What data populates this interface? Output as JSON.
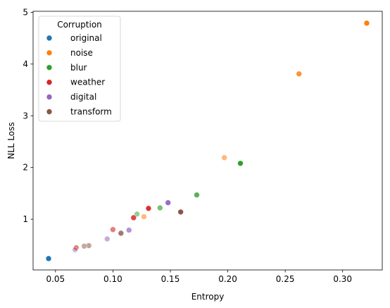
{
  "chart_data": {
    "type": "scatter",
    "title": "",
    "xlabel": "Entropy",
    "ylabel": "NLL Loss",
    "xlim": [
      0.0305,
      0.3345
    ],
    "ylim": [
      0.02,
      5.02
    ],
    "x_ticks": [
      0.05,
      0.1,
      0.15,
      0.2,
      0.25,
      0.3
    ],
    "x_tick_labels": [
      "0.05",
      "0.10",
      "0.15",
      "0.20",
      "0.25",
      "0.30"
    ],
    "y_ticks": [
      1,
      2,
      3,
      4,
      5
    ],
    "y_tick_labels": [
      "1",
      "2",
      "3",
      "4",
      "5"
    ],
    "grid": false,
    "legend": {
      "title": "Corruption",
      "placement": "top-left"
    },
    "series": [
      {
        "name": "original",
        "color": "#1f77b4",
        "points": [
          {
            "x": 0.044,
            "y": 0.24,
            "alpha": 1.0
          }
        ]
      },
      {
        "name": "noise",
        "color": "#ff7f0e",
        "points": [
          {
            "x": 0.321,
            "y": 4.79,
            "alpha": 1.0
          },
          {
            "x": 0.262,
            "y": 3.81,
            "alpha": 0.85
          },
          {
            "x": 0.197,
            "y": 2.19,
            "alpha": 0.55
          },
          {
            "x": 0.127,
            "y": 1.05,
            "alpha": 0.55
          },
          {
            "x": 0.068,
            "y": 0.44,
            "alpha": 0.55
          }
        ]
      },
      {
        "name": "blur",
        "color": "#2ca02c",
        "points": [
          {
            "x": 0.211,
            "y": 2.08,
            "alpha": 1.0
          },
          {
            "x": 0.173,
            "y": 1.47,
            "alpha": 0.8
          },
          {
            "x": 0.141,
            "y": 1.22,
            "alpha": 0.65
          },
          {
            "x": 0.121,
            "y": 1.1,
            "alpha": 0.5
          }
        ]
      },
      {
        "name": "weather",
        "color": "#d62728",
        "points": [
          {
            "x": 0.131,
            "y": 1.21,
            "alpha": 0.95
          },
          {
            "x": 0.118,
            "y": 1.03,
            "alpha": 0.85
          },
          {
            "x": 0.1,
            "y": 0.8,
            "alpha": 0.6
          },
          {
            "x": 0.068,
            "y": 0.45,
            "alpha": 0.5
          }
        ]
      },
      {
        "name": "digital",
        "color": "#9467bd",
        "points": [
          {
            "x": 0.148,
            "y": 1.32,
            "alpha": 0.95
          },
          {
            "x": 0.114,
            "y": 0.79,
            "alpha": 0.7
          },
          {
            "x": 0.095,
            "y": 0.62,
            "alpha": 0.55
          },
          {
            "x": 0.067,
            "y": 0.41,
            "alpha": 0.45
          }
        ]
      },
      {
        "name": "transform",
        "color": "#8c564b",
        "points": [
          {
            "x": 0.159,
            "y": 1.14,
            "alpha": 1.0
          },
          {
            "x": 0.107,
            "y": 0.73,
            "alpha": 0.8
          },
          {
            "x": 0.079,
            "y": 0.49,
            "alpha": 0.55
          },
          {
            "x": 0.075,
            "y": 0.48,
            "alpha": 0.5
          }
        ]
      }
    ]
  }
}
